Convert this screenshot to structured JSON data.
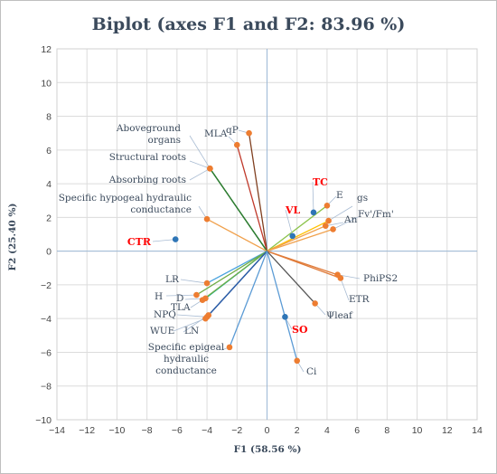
{
  "chart_data": {
    "type": "scatter",
    "title": "Biplot (axes F1 and F2: 83.96 %)",
    "xlabel": "F1 (58.56 %)",
    "ylabel": "F2 (25.40 %)",
    "xlim": [
      -14,
      14
    ],
    "ylim": [
      -10,
      12
    ],
    "xticks": [
      "−14",
      "−12",
      "−10",
      "−8",
      "−6",
      "−4",
      "−2",
      "0",
      "2",
      "4",
      "6",
      "8",
      "10",
      "12",
      "14"
    ],
    "yticks": [
      "−10",
      "−8",
      "−6",
      "−4",
      "−2",
      "0",
      "2",
      "4",
      "6",
      "8",
      "10",
      "12"
    ],
    "grid": true,
    "variables": [
      {
        "name": "qP",
        "x": -1.2,
        "y": 7.0,
        "color": "#7f3f1f"
      },
      {
        "name": "MLA",
        "x": -2.0,
        "y": 6.3,
        "color": "#c0392b"
      },
      {
        "name": "Aboveground\norgans",
        "x": -3.8,
        "y": 4.9,
        "color": "#2e7d32"
      },
      {
        "name": "Structural roots",
        "x": -3.8,
        "y": 4.9,
        "color": "#2e7d32"
      },
      {
        "name": "Absorbing roots",
        "x": -3.8,
        "y": 4.9,
        "color": "#2e7d32"
      },
      {
        "name": "Specific hypogeal hydraulic\nconductance",
        "x": -4.0,
        "y": 1.9,
        "color": "#f0a04b"
      },
      {
        "name": "E",
        "x": 4.0,
        "y": 2.7,
        "color": "#8bc34a"
      },
      {
        "name": "gs",
        "x": 4.1,
        "y": 1.8,
        "color": "#ffc000"
      },
      {
        "name": "Fv'/Fm'",
        "x": 4.4,
        "y": 1.3,
        "color": "#f0a04b"
      },
      {
        "name": "An",
        "x": 3.9,
        "y": 1.5,
        "color": "#f0a04b"
      },
      {
        "name": "PhiPS2",
        "x": 4.7,
        "y": -1.4,
        "color": "#e07b39"
      },
      {
        "name": "ETR",
        "x": 4.9,
        "y": -1.6,
        "color": "#e07b39"
      },
      {
        "name": "Ψleaf",
        "x": 3.2,
        "y": -3.1,
        "color": "#555555"
      },
      {
        "name": "Ci",
        "x": 2.0,
        "y": -6.5,
        "color": "#5b9bd5"
      },
      {
        "name": "LR",
        "x": -4.0,
        "y": -1.9,
        "color": "#4aa3df"
      },
      {
        "name": "H",
        "x": -4.7,
        "y": -2.6,
        "color": "#70ad47"
      },
      {
        "name": "D",
        "x": -4.1,
        "y": -2.8,
        "color": "#00b0a0"
      },
      {
        "name": "TLA",
        "x": -4.3,
        "y": -2.9,
        "color": "#70ad47"
      },
      {
        "name": "NPQ",
        "x": -4.0,
        "y": -3.9,
        "color": "#1f4e99"
      },
      {
        "name": "LN",
        "x": -3.9,
        "y": -3.8,
        "color": "#2e5fa8"
      },
      {
        "name": "WUE",
        "x": -4.1,
        "y": -4.0,
        "color": "#2e5fa8"
      },
      {
        "name": "Specific epigeal\nhydraulic\nconductance",
        "x": -2.5,
        "y": -5.7,
        "color": "#5b9bd5"
      }
    ],
    "observations": [
      {
        "name": "CTR",
        "x": -6.1,
        "y": 0.7
      },
      {
        "name": "VL",
        "x": 1.7,
        "y": 0.9
      },
      {
        "name": "TC",
        "x": 3.1,
        "y": 2.3
      },
      {
        "name": "SO",
        "x": 1.2,
        "y": -3.9
      }
    ]
  }
}
